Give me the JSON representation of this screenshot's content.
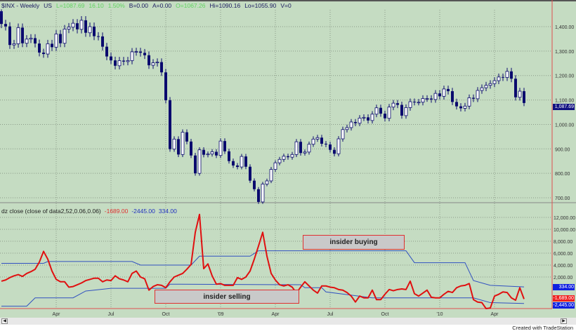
{
  "header": {
    "symbol": "$INX - Weekly",
    "exchange": "US",
    "last": "L=1087.69",
    "change": "16.10",
    "change_pct": "1.50%",
    "bid": "B=0.00",
    "ask": "A=0.00",
    "open": "O=1067.26",
    "high": "Hi=1090.16",
    "low": "Lo=1055.90",
    "volume": "V=0"
  },
  "indicator": {
    "title": "dz close (close of data2,52,0.06,0.06)",
    "value": "-1689.00",
    "lower_band": "-2445.00",
    "upper_band": "334.00"
  },
  "annotations": {
    "buying": "insider buying",
    "selling": "insider selling"
  },
  "credit": "Created with TradeStation",
  "colors": {
    "background": "#c5dcc2",
    "candle": "#0a0a6e",
    "dz_line": "#e01010",
    "band": "#3050c0",
    "axis_line": "#e05050"
  },
  "chart_data": [
    {
      "type": "candlestick",
      "title": "$INX - Weekly",
      "ylim": [
        680,
        1480
      ],
      "y_ticks": [
        "1,400.00",
        "1,300.00",
        "1,200.00",
        "1,100.00",
        "1,000.00",
        "900.00",
        "800.00",
        "700.00"
      ],
      "y_tick_values": [
        1400,
        1300,
        1200,
        1100,
        1000,
        900,
        800,
        700
      ],
      "last_label": "1,087.69",
      "x_tick_labels": [
        {
          "label": "Apr",
          "date": "2008-04-04"
        },
        {
          "label": "Jul",
          "date": "2008-07-04"
        },
        {
          "label": "Oct",
          "date": "2008-10-03"
        },
        {
          "label": "'09",
          "date": "2009-01-02"
        },
        {
          "label": "Apr",
          "date": "2009-04-03"
        },
        {
          "label": "Jul",
          "date": "2009-07-03"
        },
        {
          "label": "Oct",
          "date": "2009-10-02"
        },
        {
          "label": "'10",
          "date": "2010-01-01"
        },
        {
          "label": "Apr",
          "date": "2010-04-02"
        }
      ],
      "weeks": [
        "2008-01-04",
        "2008-01-11",
        "2008-01-18",
        "2008-01-25",
        "2008-02-01",
        "2008-02-08",
        "2008-02-15",
        "2008-02-22",
        "2008-02-29",
        "2008-03-07",
        "2008-03-14",
        "2008-03-21",
        "2008-03-28",
        "2008-04-04",
        "2008-04-11",
        "2008-04-18",
        "2008-04-25",
        "2008-05-02",
        "2008-05-09",
        "2008-05-16",
        "2008-05-23",
        "2008-05-30",
        "2008-06-06",
        "2008-06-13",
        "2008-06-20",
        "2008-06-27",
        "2008-07-04",
        "2008-07-11",
        "2008-07-18",
        "2008-07-25",
        "2008-08-01",
        "2008-08-08",
        "2008-08-15",
        "2008-08-22",
        "2008-08-29",
        "2008-09-05",
        "2008-09-12",
        "2008-09-19",
        "2008-09-26",
        "2008-10-03",
        "2008-10-10",
        "2008-10-17",
        "2008-10-24",
        "2008-10-31",
        "2008-11-07",
        "2008-11-14",
        "2008-11-21",
        "2008-11-28",
        "2008-12-05",
        "2008-12-12",
        "2008-12-19",
        "2008-12-26",
        "2009-01-02",
        "2009-01-09",
        "2009-01-16",
        "2009-01-23",
        "2009-01-30",
        "2009-02-06",
        "2009-02-13",
        "2009-02-20",
        "2009-02-27",
        "2009-03-06",
        "2009-03-13",
        "2009-03-20",
        "2009-03-27",
        "2009-04-03",
        "2009-04-10",
        "2009-04-17",
        "2009-04-24",
        "2009-05-01",
        "2009-05-08",
        "2009-05-15",
        "2009-05-22",
        "2009-05-29",
        "2009-06-05",
        "2009-06-12",
        "2009-06-19",
        "2009-06-26",
        "2009-07-03",
        "2009-07-10",
        "2009-07-17",
        "2009-07-24",
        "2009-07-31",
        "2009-08-07",
        "2009-08-14",
        "2009-08-21",
        "2009-08-28",
        "2009-09-04",
        "2009-09-11",
        "2009-09-18",
        "2009-09-25",
        "2009-10-02",
        "2009-10-09",
        "2009-10-16",
        "2009-10-23",
        "2009-10-30",
        "2009-11-06",
        "2009-11-13",
        "2009-11-20",
        "2009-11-27",
        "2009-12-04",
        "2009-12-11",
        "2009-12-18",
        "2009-12-25",
        "2010-01-01",
        "2010-01-08",
        "2010-01-15",
        "2010-01-22",
        "2010-01-29",
        "2010-02-05",
        "2010-02-12",
        "2010-02-19",
        "2010-02-26",
        "2010-03-05",
        "2010-03-12",
        "2010-03-19",
        "2010-03-26",
        "2010-04-02",
        "2010-04-09",
        "2010-04-16",
        "2010-04-23",
        "2010-04-30",
        "2010-05-07",
        "2010-05-14",
        "2010-05-21"
      ],
      "close": [
        1411,
        1401,
        1325,
        1330,
        1396,
        1332,
        1349,
        1353,
        1331,
        1294,
        1288,
        1330,
        1316,
        1370,
        1332,
        1390,
        1398,
        1414,
        1389,
        1426,
        1375,
        1400,
        1361,
        1360,
        1318,
        1278,
        1262,
        1240,
        1261,
        1257,
        1261,
        1297,
        1298,
        1293,
        1283,
        1242,
        1252,
        1255,
        1213,
        1099,
        899,
        940,
        877,
        968,
        930,
        873,
        800,
        896,
        876,
        879,
        888,
        873,
        932,
        890,
        850,
        832,
        826,
        869,
        827,
        770,
        735,
        683,
        756,
        769,
        816,
        843,
        857,
        870,
        866,
        877,
        929,
        883,
        887,
        919,
        940,
        946,
        921,
        918,
        896,
        880,
        941,
        979,
        987,
        1010,
        1005,
        1026,
        1029,
        1016,
        1042,
        1068,
        1044,
        1025,
        1071,
        1087,
        1080,
        1036,
        1069,
        1093,
        1091,
        1091,
        1106,
        1106,
        1102,
        1127,
        1115,
        1145,
        1136,
        1092,
        1074,
        1066,
        1075,
        1109,
        1105,
        1139,
        1150,
        1160,
        1167,
        1179,
        1194,
        1192,
        1217,
        1187,
        1111,
        1136,
        1087.69
      ]
    },
    {
      "type": "line",
      "title": "dz close (close of data2,52,0.06,0.06)",
      "ylim": [
        -3600,
        13000
      ],
      "y_ticks": [
        "12,000.00",
        "10,000.00",
        "8,000.00",
        "6,000.00",
        "4,000.00",
        "2,000.00"
      ],
      "y_tick_values": [
        12000,
        10000,
        8000,
        6000,
        4000,
        2000
      ],
      "last_labels": {
        "upper": "334.00",
        "value": "-1,689.00",
        "lower": "-2,445.00"
      },
      "dz": [
        1300,
        1500,
        1900,
        2200,
        2400,
        2100,
        2600,
        2900,
        3300,
        4500,
        6300,
        5000,
        3000,
        1600,
        1200,
        1200,
        300,
        400,
        700,
        1000,
        1400,
        1600,
        1800,
        1800,
        1200,
        1500,
        1400,
        2200,
        1700,
        1500,
        1200,
        2600,
        3000,
        2000,
        1700,
        -200,
        400,
        700,
        600,
        200,
        1200,
        2000,
        2300,
        2600,
        3300,
        4100,
        9500,
        12500,
        3400,
        4200,
        2200,
        800,
        900,
        600,
        600,
        600,
        1900,
        1600,
        2000,
        3000,
        5000,
        7200,
        9500,
        5500,
        2600,
        1500,
        700,
        500,
        700,
        300,
        -700,
        300,
        1200,
        500,
        -200,
        -700,
        500,
        500,
        300,
        200,
        -100,
        -200,
        -600,
        -1200,
        -2200,
        -1200,
        -1500,
        -1500,
        -200,
        -1800,
        -1800,
        -900,
        -100,
        -300,
        -100,
        0,
        -100,
        1300,
        -800,
        -1200,
        -700,
        -200,
        -1400,
        -1500,
        -1500,
        -900,
        -400,
        -600,
        200,
        500,
        600,
        900,
        -1800,
        -2200,
        -2300,
        -3300,
        -3200,
        -1200,
        -900,
        -500,
        -600,
        -1500,
        -1900,
        200,
        -1689
      ],
      "upper_band": [
        {
          "date": "2008-01-04",
          "value": 4300
        },
        {
          "date": "2008-03-14",
          "value": 4300
        },
        {
          "date": "2008-03-21",
          "value": 4600
        },
        {
          "date": "2008-08-08",
          "value": 4600
        },
        {
          "date": "2008-08-22",
          "value": 4000
        },
        {
          "date": "2008-11-14",
          "value": 4000
        },
        {
          "date": "2008-11-28",
          "value": 5500
        },
        {
          "date": "2009-02-20",
          "value": 5500
        },
        {
          "date": "2009-03-06",
          "value": 6400
        },
        {
          "date": "2009-11-06",
          "value": 6400
        },
        {
          "date": "2009-11-20",
          "value": 4400
        },
        {
          "date": "2010-02-12",
          "value": 4400
        },
        {
          "date": "2010-02-26",
          "value": 1400
        },
        {
          "date": "2010-03-26",
          "value": 600
        },
        {
          "date": "2010-05-21",
          "value": 334
        }
      ],
      "lower_band": [
        {
          "date": "2008-01-04",
          "value": -2900
        },
        {
          "date": "2008-02-15",
          "value": -2900
        },
        {
          "date": "2008-02-29",
          "value": -1500
        },
        {
          "date": "2008-05-02",
          "value": -1500
        },
        {
          "date": "2008-05-23",
          "value": -350
        },
        {
          "date": "2008-07-04",
          "value": 100
        },
        {
          "date": "2008-10-03",
          "value": 100
        },
        {
          "date": "2008-10-10",
          "value": 800
        },
        {
          "date": "2009-05-15",
          "value": 700
        },
        {
          "date": "2009-05-22",
          "value": 200
        },
        {
          "date": "2009-06-19",
          "value": 200
        },
        {
          "date": "2009-06-26",
          "value": -500
        },
        {
          "date": "2009-09-11",
          "value": -1500
        },
        {
          "date": "2010-02-26",
          "value": -1500
        },
        {
          "date": "2010-03-26",
          "value": -2300
        },
        {
          "date": "2010-05-21",
          "value": -2445
        }
      ]
    }
  ]
}
